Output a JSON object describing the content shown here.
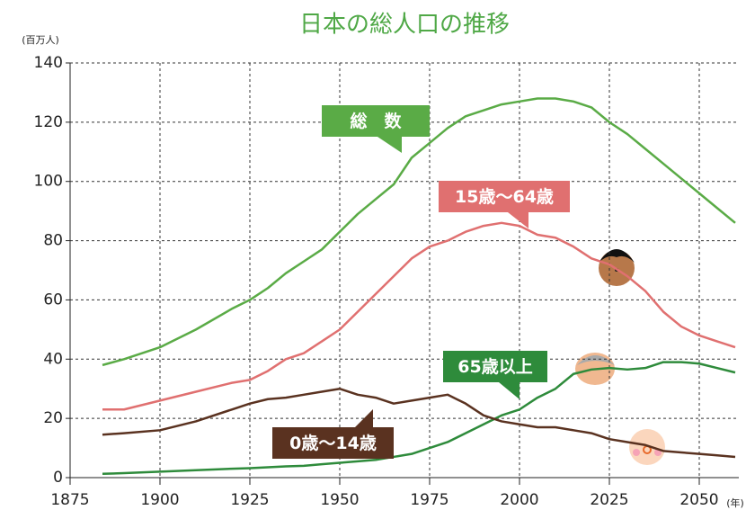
{
  "chart_data": {
    "type": "line",
    "title": "日本の総人口の推移",
    "y_unit": "(百万人)",
    "x_unit": "(年)",
    "x": [
      1884,
      1890,
      1900,
      1910,
      1920,
      1925,
      1930,
      1935,
      1940,
      1945,
      1950,
      1955,
      1960,
      1965,
      1970,
      1975,
      1980,
      1985,
      1990,
      1995,
      2000,
      2005,
      2010,
      2015,
      2020,
      2025,
      2030,
      2035,
      2040,
      2045,
      2050,
      2055,
      2060
    ],
    "series": [
      {
        "name": "総　数",
        "color": "#5aab46",
        "values": [
          38,
          40,
          44,
          50,
          57,
          60,
          64,
          69,
          73,
          77,
          83,
          89,
          94,
          99,
          108,
          113,
          118,
          122,
          124,
          126,
          127,
          128,
          128,
          127,
          125,
          120,
          116,
          111,
          106,
          101,
          96,
          91,
          86
        ]
      },
      {
        "name": "15歳～64歳",
        "color": "#e07070",
        "values": [
          23,
          23,
          26,
          29,
          32,
          33,
          36,
          40,
          42,
          46,
          50,
          56,
          62,
          68,
          74,
          78,
          80,
          83,
          85,
          86,
          85,
          82,
          81,
          78,
          74,
          72,
          68,
          63,
          56,
          51,
          48,
          46,
          44
        ]
      },
      {
        "name": "65歳以上",
        "color": "#2e8b3b",
        "values": [
          1.3,
          1.5,
          2,
          2.5,
          3,
          3.2,
          3.5,
          3.8,
          4,
          4.5,
          5,
          5.5,
          6,
          7,
          8,
          10,
          12,
          15,
          18,
          21,
          23,
          27,
          30,
          35,
          36.5,
          37,
          36.5,
          37,
          39,
          39,
          38.5,
          37,
          35.5
        ]
      },
      {
        "name": "0歳～14歳",
        "color": "#5a3220",
        "values": [
          14.5,
          15,
          16,
          19,
          23,
          25,
          26.5,
          27,
          28,
          29,
          30,
          28,
          27,
          25,
          26,
          27,
          28,
          25,
          21,
          19,
          18,
          17,
          17,
          16,
          15,
          13,
          12,
          11,
          9,
          8.5,
          8,
          7.5,
          7
        ]
      }
    ],
    "xlim": [
      1875,
      2061
    ],
    "ylim": [
      0,
      140
    ],
    "xticks": [
      1875,
      1900,
      1925,
      1950,
      1975,
      2000,
      2025,
      2050
    ],
    "yticks": [
      0,
      20,
      40,
      60,
      80,
      100,
      120,
      140
    ],
    "grid": true
  }
}
